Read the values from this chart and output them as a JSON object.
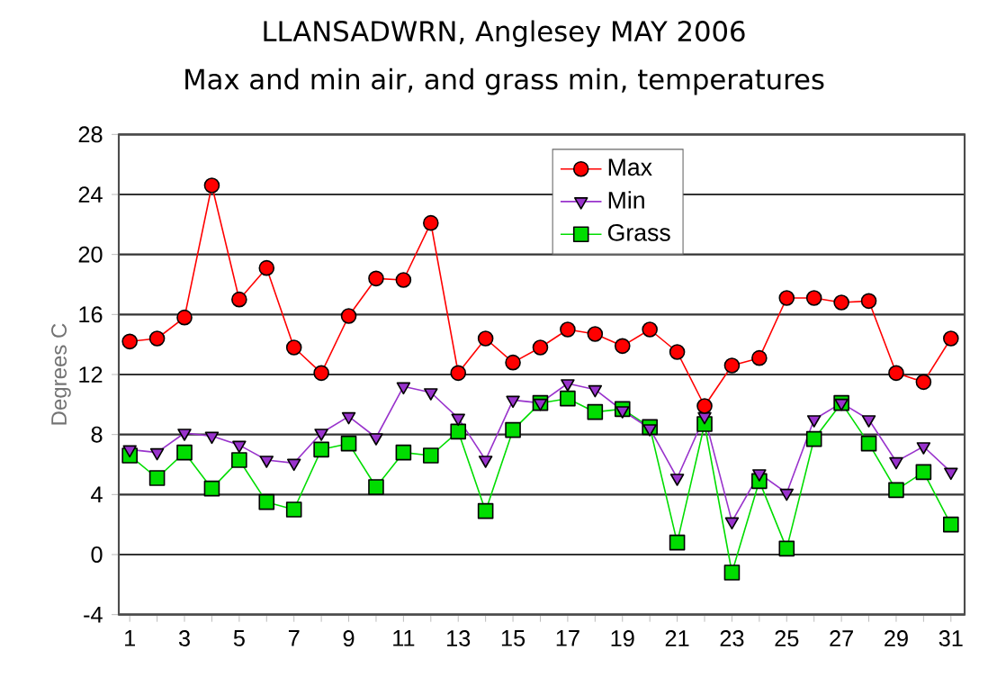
{
  "chart_data": {
    "type": "line",
    "title": "LLANSADWRN, Anglesey MAY 2006",
    "subtitle": "Max and min air, and grass min, temperatures",
    "ylabel": "Degrees C",
    "x": [
      1,
      2,
      3,
      4,
      5,
      6,
      7,
      8,
      9,
      10,
      11,
      12,
      13,
      14,
      15,
      16,
      17,
      18,
      19,
      20,
      21,
      22,
      23,
      24,
      25,
      26,
      27,
      28,
      29,
      30,
      31
    ],
    "series": [
      {
        "name": "Max",
        "color": "#ff0000",
        "marker": "circle",
        "values": [
          14.2,
          14.4,
          15.8,
          24.6,
          17,
          19.1,
          13.8,
          12.1,
          15.9,
          18.4,
          18.3,
          22.1,
          12.1,
          14.4,
          12.8,
          13.8,
          15,
          14.7,
          13.9,
          15,
          13.5,
          9.9,
          12.6,
          13.1,
          17.1,
          17.1,
          16.8,
          16.9,
          12.1,
          11.5,
          14.4
        ]
      },
      {
        "name": "Min",
        "color": "#9933cc",
        "marker": "triangle",
        "values": [
          7,
          6.8,
          8.1,
          7.9,
          7.3,
          6.3,
          6.1,
          8.1,
          9.2,
          7.8,
          11.2,
          10.8,
          9.1,
          6.3,
          10.3,
          10.1,
          11.4,
          11,
          9.6,
          8.4,
          5.1,
          9.2,
          2.2,
          5.4,
          4.1,
          9,
          10.1,
          9,
          6.2,
          7.2,
          5.5
        ]
      },
      {
        "name": "Grass",
        "color": "#00dd00",
        "marker": "square",
        "values": [
          6.6,
          5.1,
          6.8,
          4.4,
          6.3,
          3.5,
          3,
          7,
          7.4,
          4.5,
          6.8,
          6.6,
          8.2,
          2.9,
          8.3,
          10.1,
          10.4,
          9.5,
          9.7,
          8.5,
          0.8,
          8.7,
          -1.2,
          4.9,
          0.4,
          7.7,
          10.1,
          7.4,
          4.3,
          5.5,
          2
        ]
      }
    ],
    "xlim": [
      0.6,
      31.5
    ],
    "xticks": [
      1,
      {
        "value": 2,
        "label": null
      },
      3,
      {
        "value": 4,
        "label": null
      },
      5,
      {
        "value": 6,
        "label": null
      },
      7,
      {
        "value": 8,
        "label": null
      },
      9,
      {
        "value": 10,
        "label": null
      },
      11,
      {
        "value": 12,
        "label": null
      },
      13,
      {
        "value": 14,
        "label": null
      },
      15,
      {
        "value": 16,
        "label": null
      },
      17,
      {
        "value": 18,
        "label": null
      },
      19,
      {
        "value": 20,
        "label": null
      },
      21,
      {
        "value": 22,
        "label": null
      },
      23,
      {
        "value": 24,
        "label": null
      },
      25,
      {
        "value": 26,
        "label": null
      },
      27,
      {
        "value": 28,
        "label": null
      },
      29,
      {
        "value": 30,
        "label": null
      },
      31
    ],
    "ylim": [
      -4,
      28
    ],
    "yticks": [
      -4,
      0,
      4,
      8,
      12,
      16,
      20,
      24,
      28
    ],
    "grid": "y",
    "legend": "top"
  }
}
